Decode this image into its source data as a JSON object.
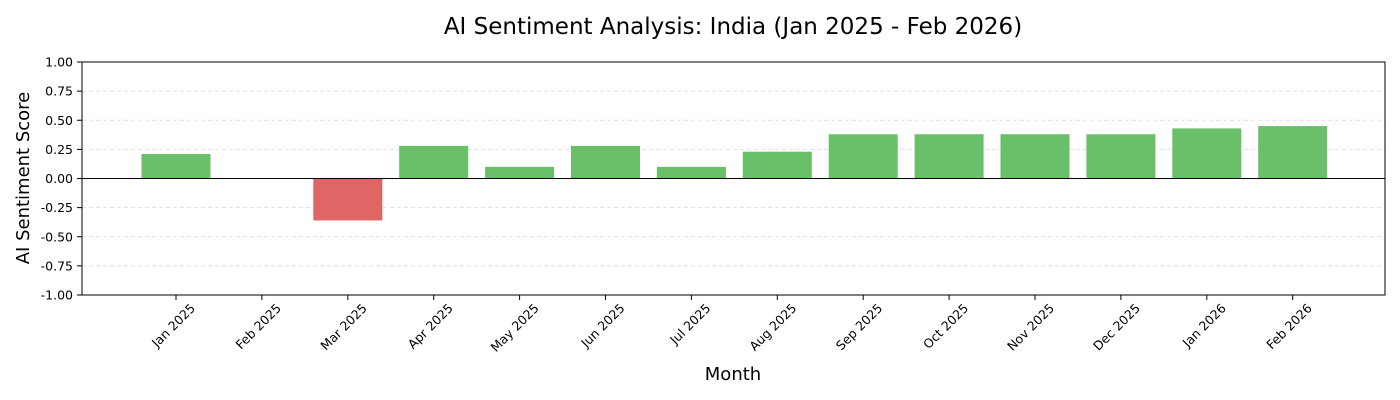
{
  "chart_data": {
    "type": "bar",
    "title": "AI Sentiment Analysis: India (Jan 2025 - Feb 2026)",
    "xlabel": "Month",
    "ylabel": "AI Sentiment Score",
    "categories": [
      "Jan 2025",
      "Feb 2025",
      "Mar 2025",
      "Apr 2025",
      "May 2025",
      "Jun 2025",
      "Jul 2025",
      "Aug 2025",
      "Sep 2025",
      "Oct 2025",
      "Nov 2025",
      "Dec 2025",
      "Jan 2026",
      "Feb 2026"
    ],
    "values": [
      0.21,
      0.0,
      -0.36,
      0.28,
      0.1,
      0.28,
      0.1,
      0.23,
      0.38,
      0.38,
      0.38,
      0.38,
      0.43,
      0.45
    ],
    "ylim": [
      -1.0,
      1.0
    ],
    "yticks": [
      "1.00",
      "0.75",
      "0.50",
      "0.25",
      "0.00",
      "-0.25",
      "-0.50",
      "-0.75",
      "-1.00"
    ],
    "grid": true,
    "colors": {
      "positive": "#6abf69",
      "negative": "#e06666",
      "zero_line": "#000000",
      "grid": "#e0e0e0"
    }
  }
}
